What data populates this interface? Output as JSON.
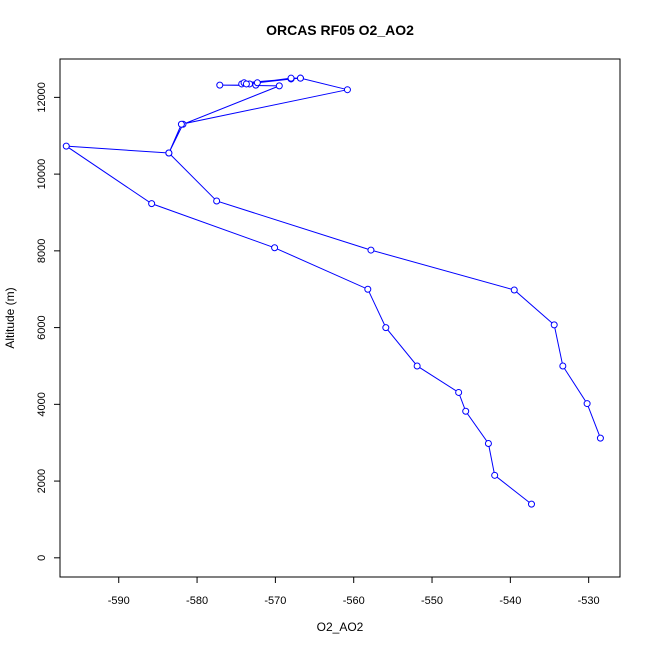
{
  "chart_data": {
    "type": "line",
    "title": "ORCAS RF05 O2_AO2",
    "xlabel": "O2_AO2",
    "ylabel": "Altitude (m)",
    "xlim": [
      -597.5,
      -526
    ],
    "ylim": [
      -500,
      13000
    ],
    "x_ticks": [
      -590,
      -580,
      -570,
      -560,
      -550,
      -540,
      -530
    ],
    "y_ticks": [
      0,
      2000,
      4000,
      6000,
      8000,
      10000,
      12000
    ],
    "grid": false,
    "legend": "none",
    "series_color": "#0000ff",
    "series": [
      {
        "x": [
          -537.3,
          -542.0,
          -542.8,
          -545.7,
          -546.6,
          -551.9,
          -555.9,
          -558.2,
          -570.1,
          -585.8,
          -596.7,
          -583.6,
          -581.8,
          -569.5,
          -577.1,
          -572.5,
          -573.3,
          -574.3,
          -574.0,
          -566.8,
          -568.0,
          -572.3,
          -573.7,
          -568.0,
          -566.8,
          -560.8,
          -582.0,
          -583.6,
          -577.5,
          -557.8,
          -539.5,
          -534.4,
          -533.3,
          -530.2,
          -528.5
        ],
        "y": [
          1400,
          2150,
          2980,
          3820,
          4310,
          5000,
          6000,
          7000,
          8080,
          9230,
          10730,
          10550,
          11300,
          12300,
          12320,
          12320,
          12350,
          12350,
          12380,
          12500,
          12480,
          12380,
          12350,
          12500,
          12500,
          12200,
          11300,
          10550,
          9300,
          8020,
          6980,
          6070,
          5000,
          4020,
          3120
        ]
      }
    ]
  }
}
